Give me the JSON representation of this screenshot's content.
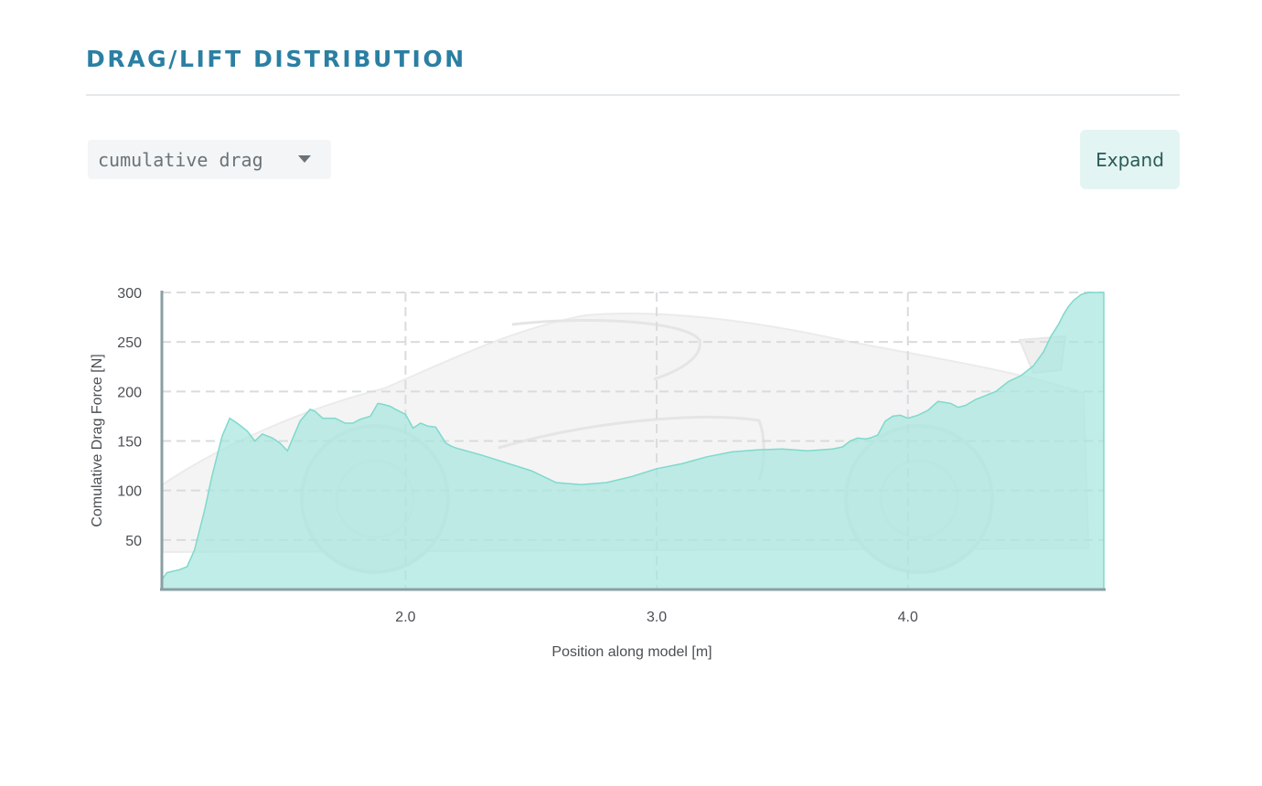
{
  "header": {
    "title": "DRAG/LIFT DISTRIBUTION"
  },
  "controls": {
    "metric_select": {
      "value": "cumulative drag"
    },
    "expand_label": "Expand"
  },
  "colors": {
    "title": "#2a7fa3",
    "area_fill": "#a8e6de",
    "area_stroke": "#7fd9cc",
    "axis": "#8a9fa4",
    "grid": "#d8dcde"
  },
  "chart_data": {
    "type": "area",
    "title": "",
    "xlabel": "Position along model [m]",
    "ylabel": "Comulative Drag Force [N]",
    "xlim": [
      1.03,
      4.78
    ],
    "ylim": [
      0,
      300
    ],
    "x_ticks": [
      2.0,
      3.0,
      4.0
    ],
    "x_tick_labels": [
      "2.0",
      "3.0",
      "4.0"
    ],
    "y_ticks": [
      50,
      100,
      150,
      200,
      250,
      300
    ],
    "y_tick_labels": [
      "50",
      "100",
      "150",
      "200",
      "250",
      "300"
    ],
    "grid": true,
    "series": [
      {
        "x": [
          1.03,
          1.05,
          1.1,
          1.13,
          1.16,
          1.2,
          1.23,
          1.27,
          1.3,
          1.33,
          1.37,
          1.4,
          1.43,
          1.47,
          1.5,
          1.53,
          1.58,
          1.62,
          1.64,
          1.67,
          1.72,
          1.76,
          1.79,
          1.82,
          1.86,
          1.89,
          1.91,
          1.94,
          1.96,
          2.0,
          2.03,
          2.06,
          2.09,
          2.12,
          2.16,
          2.18,
          2.2,
          2.3,
          2.4,
          2.5,
          2.6,
          2.7,
          2.8,
          2.9,
          3.0,
          3.1,
          3.2,
          3.3,
          3.4,
          3.5,
          3.6,
          3.7,
          3.74,
          3.77,
          3.8,
          3.83,
          3.85,
          3.88,
          3.91,
          3.94,
          3.97,
          4.0,
          4.04,
          4.08,
          4.12,
          4.17,
          4.2,
          4.23,
          4.27,
          4.3,
          4.35,
          4.4,
          4.45,
          4.5,
          4.54,
          4.57,
          4.6,
          4.62,
          4.64,
          4.66,
          4.69,
          4.72,
          4.76,
          4.78
        ],
        "y": [
          10,
          17,
          20,
          23,
          40,
          80,
          115,
          155,
          173,
          168,
          160,
          150,
          157,
          153,
          148,
          140,
          170,
          182,
          180,
          173,
          173,
          168,
          168,
          172,
          175,
          188,
          187,
          185,
          182,
          177,
          163,
          168,
          165,
          164,
          148,
          145,
          143,
          136,
          128,
          120,
          108,
          106,
          108,
          114,
          122,
          127,
          134,
          139,
          141,
          142,
          140,
          142,
          144,
          150,
          153,
          152,
          153,
          156,
          170,
          175,
          176,
          173,
          176,
          181,
          190,
          188,
          184,
          186,
          192,
          195,
          200,
          210,
          216,
          226,
          240,
          256,
          268,
          278,
          286,
          292,
          298,
          300,
          300,
          300
        ]
      }
    ]
  }
}
